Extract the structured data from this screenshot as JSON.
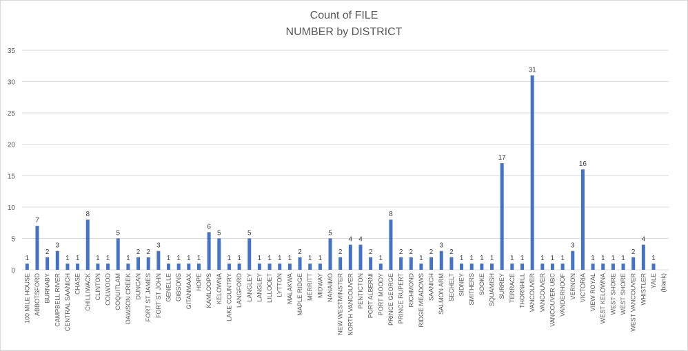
{
  "chart_data": {
    "type": "bar",
    "title_lines": [
      "Count of FILE",
      "NUMBER  by DISTRICT"
    ],
    "xlabel": "",
    "ylabel": "",
    "ylim": [
      0,
      35
    ],
    "yticks": [
      0,
      5,
      10,
      15,
      20,
      25,
      30,
      35
    ],
    "grid": true,
    "legend": "none",
    "bar_color": "#4472c4",
    "categories": [
      "100 MILE HOUSE",
      "ABBOTSFORD",
      "BURNABY",
      "CAMPBELL RIVER",
      "CENTRAL SAANICH",
      "CHASE",
      "CHILLIWACK",
      "CLINTON",
      "COLWOOD",
      "COQUITLAM",
      "DAWSON CREEK",
      "DUNCAN",
      "FORT ST JAMES",
      "FORT ST JOHN",
      "GENELLE",
      "GIBSONS",
      "GITANMAAX",
      "HOPE",
      "KAMLOOPS",
      "KELOWNA",
      "LAKE COUNTRY",
      "LANGFORD",
      "LANGLEY",
      "LANGLEY",
      "LILLOOET",
      "LYTTON",
      "MALAKWA",
      "MAPLE RIDGE",
      "MERRITT",
      "MIDWAY",
      "NANAIMO",
      "NEW WESTMINSTER",
      "NORTH VANCOUVER",
      "PENTICTON",
      "PORT ALBERNI",
      "PORT MOODY",
      "PRINCE GEORGE",
      "PRINCE RUPERT",
      "RICHMOND",
      "RIDGE MEADOWS",
      "SAANICH",
      "SALMON ARM",
      "SECHELT",
      "SIDNEY",
      "SMITHERS",
      "SOOKE",
      "SQUAMISH",
      "SURREY",
      "TERRACE",
      "THORNHILL",
      "VANCOUVER",
      "VANCOUVER",
      "VANCOUVER UBC",
      "VANDERHOOF",
      "VERNON",
      "VICTORIA",
      "VIEW ROYAL",
      "WEST KELOWNA",
      "WEST SHORE",
      "WEST SHORE",
      "WEST VANCOUVER",
      "WHISTLER",
      "YALE",
      "(blank)"
    ],
    "values": [
      1,
      7,
      2,
      3,
      1,
      1,
      8,
      1,
      1,
      5,
      1,
      2,
      2,
      3,
      1,
      1,
      1,
      1,
      6,
      5,
      1,
      1,
      5,
      1,
      1,
      1,
      1,
      2,
      1,
      1,
      5,
      2,
      4,
      4,
      2,
      1,
      8,
      2,
      2,
      1,
      2,
      3,
      2,
      1,
      1,
      1,
      1,
      17,
      1,
      1,
      31,
      1,
      1,
      1,
      3,
      16,
      1,
      1,
      1,
      1,
      2,
      4,
      1,
      null
    ]
  }
}
